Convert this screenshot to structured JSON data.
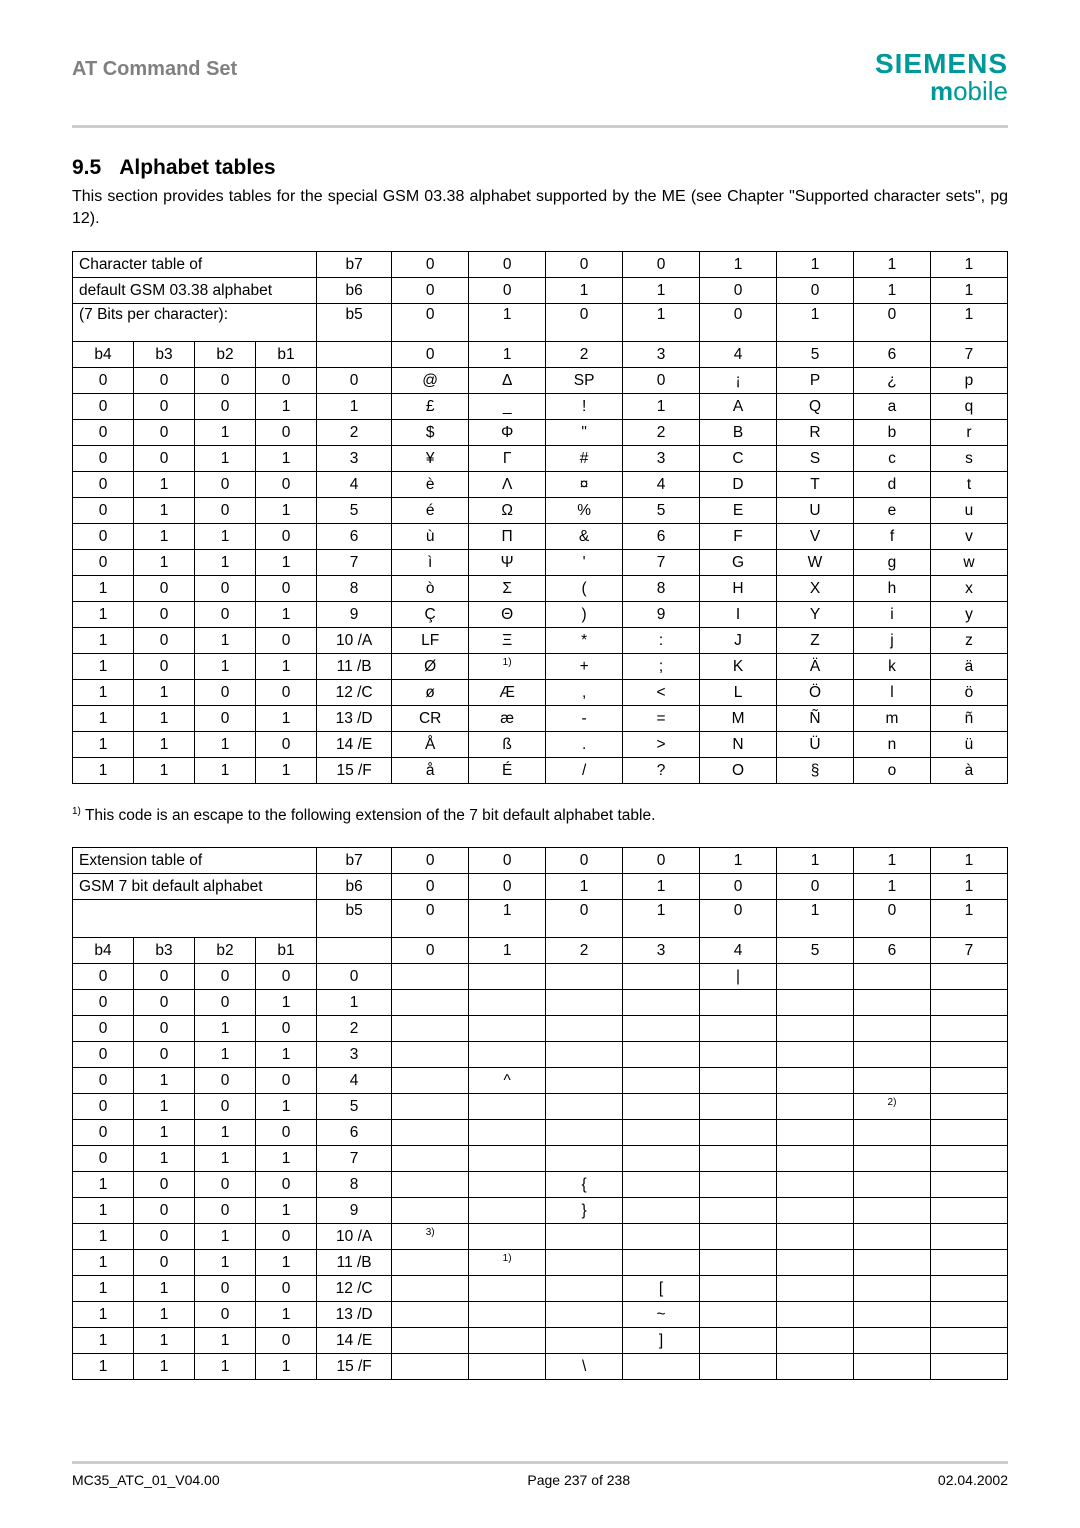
{
  "header": {
    "title": "AT Command Set",
    "logo_line1": "SIEMENS",
    "logo_line2_m": "m",
    "logo_line2_rest": "obile"
  },
  "section": {
    "number": "9.5",
    "title": "Alphabet tables",
    "intro": "This section provides tables for the special GSM 03.38 alphabet supported by the ME (see Chapter \"Supported character sets\", pg 12)."
  },
  "table1": {
    "lead1": "Character table of",
    "lead2": "default GSM 03.38 alphabet",
    "lead3": "(7 Bits per character):",
    "bit_labels": [
      "b7",
      "b6",
      "b5"
    ],
    "bit_row1": [
      "0",
      "0",
      "0",
      "0",
      "1",
      "1",
      "1",
      "1"
    ],
    "bit_row2": [
      "0",
      "0",
      "1",
      "1",
      "0",
      "0",
      "1",
      "1"
    ],
    "bit_row3": [
      "0",
      "1",
      "0",
      "1",
      "0",
      "1",
      "0",
      "1"
    ],
    "col_labels": [
      "b4",
      "b3",
      "b2",
      "b1"
    ],
    "col_idx": [
      "0",
      "1",
      "2",
      "3",
      "4",
      "5",
      "6",
      "7"
    ],
    "rows": [
      {
        "bits": [
          "0",
          "0",
          "0",
          "0"
        ],
        "n": "0",
        "c": [
          "@",
          "Δ",
          "SP",
          "0",
          "¡",
          "P",
          "¿",
          "p"
        ]
      },
      {
        "bits": [
          "0",
          "0",
          "0",
          "1"
        ],
        "n": "1",
        "c": [
          "£",
          "_",
          "!",
          "1",
          "A",
          "Q",
          "a",
          "q"
        ]
      },
      {
        "bits": [
          "0",
          "0",
          "1",
          "0"
        ],
        "n": "2",
        "c": [
          "$",
          "Φ",
          "\"",
          "2",
          "B",
          "R",
          "b",
          "r"
        ]
      },
      {
        "bits": [
          "0",
          "0",
          "1",
          "1"
        ],
        "n": "3",
        "c": [
          "¥",
          "Γ",
          "#",
          "3",
          "C",
          "S",
          "c",
          "s"
        ]
      },
      {
        "bits": [
          "0",
          "1",
          "0",
          "0"
        ],
        "n": "4",
        "c": [
          "è",
          "Λ",
          "¤",
          "4",
          "D",
          "T",
          "d",
          "t"
        ]
      },
      {
        "bits": [
          "0",
          "1",
          "0",
          "1"
        ],
        "n": "5",
        "c": [
          "é",
          "Ω",
          "%",
          "5",
          "E",
          "U",
          "e",
          "u"
        ]
      },
      {
        "bits": [
          "0",
          "1",
          "1",
          "0"
        ],
        "n": "6",
        "c": [
          "ù",
          "Π",
          "&",
          "6",
          "F",
          "V",
          "f",
          "v"
        ]
      },
      {
        "bits": [
          "0",
          "1",
          "1",
          "1"
        ],
        "n": "7",
        "c": [
          "ì",
          "Ψ",
          "'",
          "7",
          "G",
          "W",
          "g",
          "w"
        ]
      },
      {
        "bits": [
          "1",
          "0",
          "0",
          "0"
        ],
        "n": "8",
        "c": [
          "ò",
          "Σ",
          "(",
          "8",
          "H",
          "X",
          "h",
          "x"
        ]
      },
      {
        "bits": [
          "1",
          "0",
          "0",
          "1"
        ],
        "n": "9",
        "c": [
          "Ç",
          "Θ",
          ")",
          "9",
          "I",
          "Y",
          "i",
          "y"
        ]
      },
      {
        "bits": [
          "1",
          "0",
          "1",
          "0"
        ],
        "n": "10 /A",
        "c": [
          "LF",
          "Ξ",
          "*",
          ":",
          "J",
          "Z",
          "j",
          "z"
        ]
      },
      {
        "bits": [
          "1",
          "0",
          "1",
          "1"
        ],
        "n": "11 /B",
        "c": [
          "Ø",
          "1)",
          "+",
          ";",
          "K",
          "Ä",
          "k",
          "ä"
        ]
      },
      {
        "bits": [
          "1",
          "1",
          "0",
          "0"
        ],
        "n": "12 /C",
        "c": [
          "ø",
          "Æ",
          ",",
          "<",
          "L",
          "Ö",
          "l",
          "ö"
        ]
      },
      {
        "bits": [
          "1",
          "1",
          "0",
          "1"
        ],
        "n": "13 /D",
        "c": [
          "CR",
          "æ",
          "-",
          "=",
          "M",
          "Ñ",
          "m",
          "ñ"
        ]
      },
      {
        "bits": [
          "1",
          "1",
          "1",
          "0"
        ],
        "n": "14 /E",
        "c": [
          "Å",
          "ß",
          ".",
          ">",
          "N",
          "Ü",
          "n",
          "ü"
        ]
      },
      {
        "bits": [
          "1",
          "1",
          "1",
          "1"
        ],
        "n": "15 /F",
        "c": [
          "å",
          "É",
          "/",
          "?",
          "O",
          "§",
          "o",
          "à"
        ]
      }
    ]
  },
  "footnote1": "1) This code is an escape to the following extension of the 7 bit default alphabet table.",
  "table2": {
    "lead1": "Extension table of",
    "lead2": "GSM 7 bit default alphabet",
    "lead3": "",
    "bit_labels": [
      "b7",
      "b6",
      "b5"
    ],
    "bit_row1": [
      "0",
      "0",
      "0",
      "0",
      "1",
      "1",
      "1",
      "1"
    ],
    "bit_row2": [
      "0",
      "0",
      "1",
      "1",
      "0",
      "0",
      "1",
      "1"
    ],
    "bit_row3": [
      "0",
      "1",
      "0",
      "1",
      "0",
      "1",
      "0",
      "1"
    ],
    "col_labels": [
      "b4",
      "b3",
      "b2",
      "b1"
    ],
    "col_idx": [
      "0",
      "1",
      "2",
      "3",
      "4",
      "5",
      "6",
      "7"
    ],
    "rows": [
      {
        "bits": [
          "0",
          "0",
          "0",
          "0"
        ],
        "n": "0",
        "c": [
          "",
          "",
          "",
          "",
          "|",
          "",
          "",
          ""
        ]
      },
      {
        "bits": [
          "0",
          "0",
          "0",
          "1"
        ],
        "n": "1",
        "c": [
          "",
          "",
          "",
          "",
          "",
          "",
          "",
          ""
        ]
      },
      {
        "bits": [
          "0",
          "0",
          "1",
          "0"
        ],
        "n": "2",
        "c": [
          "",
          "",
          "",
          "",
          "",
          "",
          "",
          ""
        ]
      },
      {
        "bits": [
          "0",
          "0",
          "1",
          "1"
        ],
        "n": "3",
        "c": [
          "",
          "",
          "",
          "",
          "",
          "",
          "",
          ""
        ]
      },
      {
        "bits": [
          "0",
          "1",
          "0",
          "0"
        ],
        "n": "4",
        "c": [
          "",
          "^",
          "",
          "",
          "",
          "",
          "",
          ""
        ]
      },
      {
        "bits": [
          "0",
          "1",
          "0",
          "1"
        ],
        "n": "5",
        "c": [
          "",
          "",
          "",
          "",
          "",
          "",
          "2)",
          ""
        ]
      },
      {
        "bits": [
          "0",
          "1",
          "1",
          "0"
        ],
        "n": "6",
        "c": [
          "",
          "",
          "",
          "",
          "",
          "",
          "",
          ""
        ]
      },
      {
        "bits": [
          "0",
          "1",
          "1",
          "1"
        ],
        "n": "7",
        "c": [
          "",
          "",
          "",
          "",
          "",
          "",
          "",
          ""
        ]
      },
      {
        "bits": [
          "1",
          "0",
          "0",
          "0"
        ],
        "n": "8",
        "c": [
          "",
          "",
          "{",
          "",
          "",
          "",
          "",
          ""
        ]
      },
      {
        "bits": [
          "1",
          "0",
          "0",
          "1"
        ],
        "n": "9",
        "c": [
          "",
          "",
          "}",
          "",
          "",
          "",
          "",
          ""
        ]
      },
      {
        "bits": [
          "1",
          "0",
          "1",
          "0"
        ],
        "n": "10 /A",
        "c": [
          "3)",
          "",
          "",
          "",
          "",
          "",
          "",
          ""
        ]
      },
      {
        "bits": [
          "1",
          "0",
          "1",
          "1"
        ],
        "n": "11 /B",
        "c": [
          "",
          "1)",
          "",
          "",
          "",
          "",
          "",
          ""
        ]
      },
      {
        "bits": [
          "1",
          "1",
          "0",
          "0"
        ],
        "n": "12 /C",
        "c": [
          "",
          "",
          "",
          "[",
          "",
          "",
          "",
          ""
        ]
      },
      {
        "bits": [
          "1",
          "1",
          "0",
          "1"
        ],
        "n": "13 /D",
        "c": [
          "",
          "",
          "",
          "~",
          "",
          "",
          "",
          ""
        ]
      },
      {
        "bits": [
          "1",
          "1",
          "1",
          "0"
        ],
        "n": "14 /E",
        "c": [
          "",
          "",
          "",
          "]",
          "",
          "",
          "",
          ""
        ]
      },
      {
        "bits": [
          "1",
          "1",
          "1",
          "1"
        ],
        "n": "15 /F",
        "c": [
          "",
          "",
          "\\",
          "",
          "",
          "",
          "",
          ""
        ]
      }
    ]
  },
  "footer": {
    "left": "MC35_ATC_01_V04.00",
    "center": "Page 237 of 238",
    "right": "02.04.2002"
  },
  "colors": {
    "teal": "#009999",
    "grey": "#808080",
    "rule": "#cccccc",
    "black": "#000000",
    "white": "#ffffff"
  }
}
